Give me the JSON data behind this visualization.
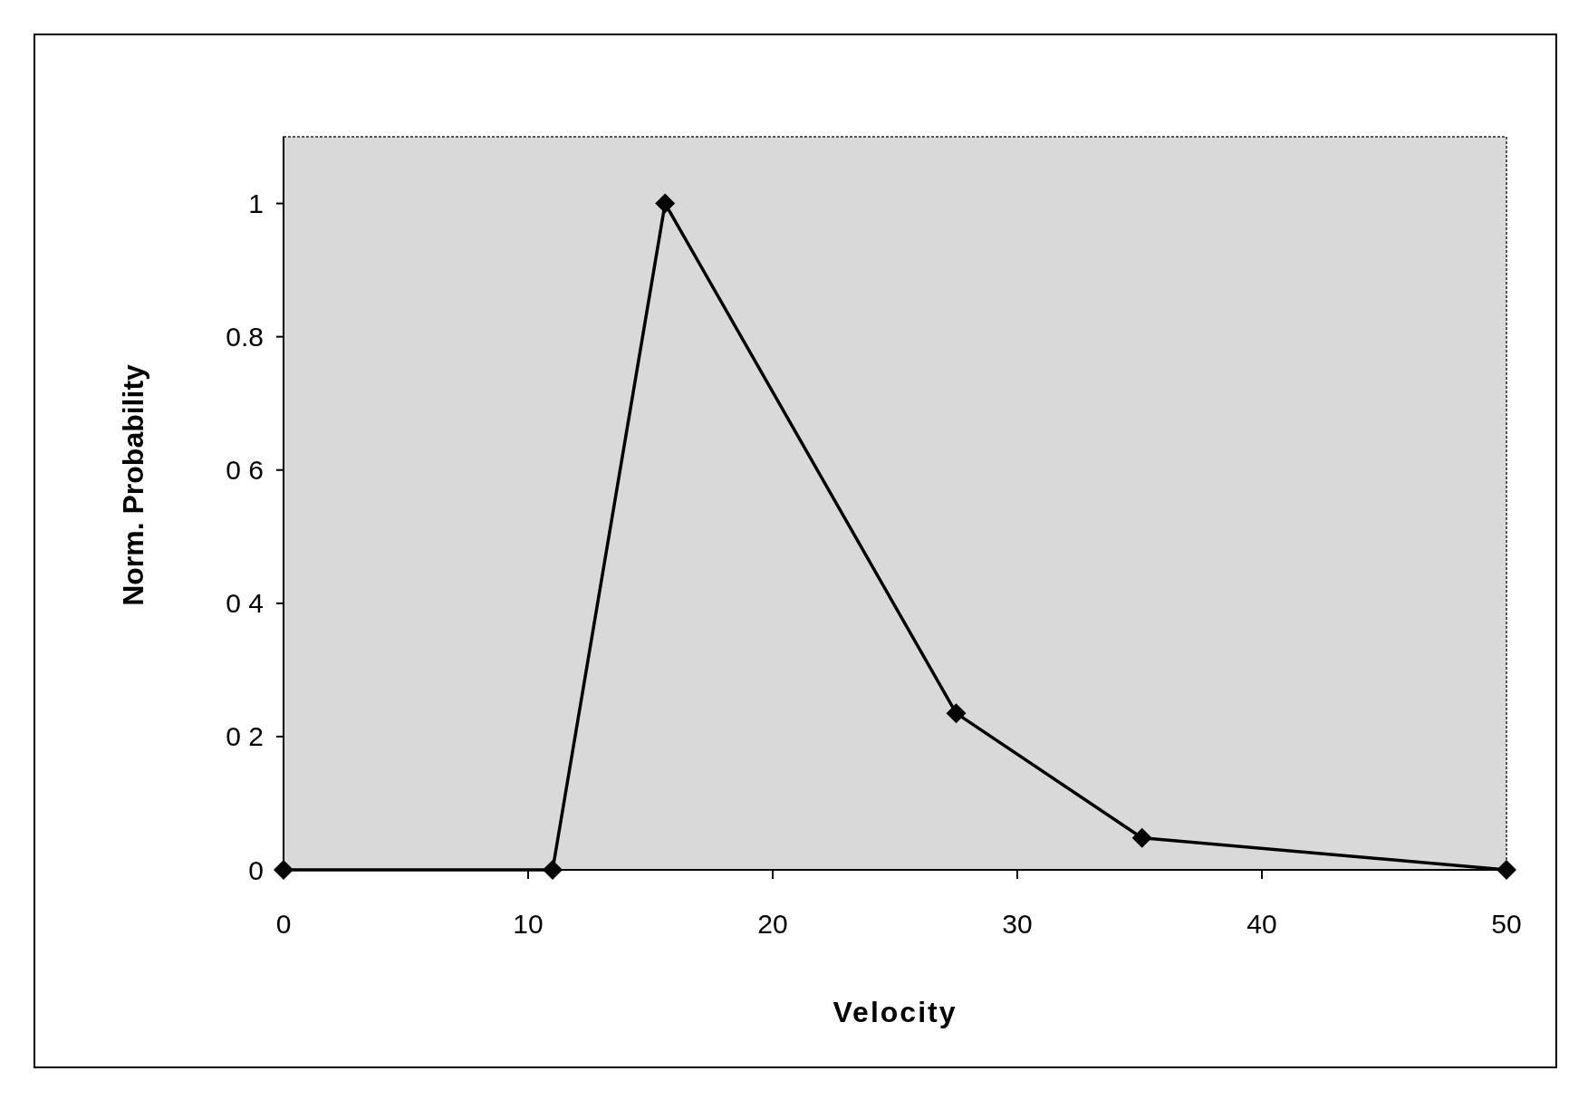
{
  "chart_data": {
    "type": "line",
    "xlabel": "Velocity",
    "ylabel": "Norm. Probability",
    "x": [
      0,
      11,
      15.6,
      27.5,
      35.1,
      50
    ],
    "series": [
      {
        "color": "#000000",
        "values": [
          0,
          0,
          1,
          0.235,
          0.048,
          0
        ]
      }
    ],
    "xlim": [
      0,
      50
    ],
    "xticks": [
      0,
      10,
      20,
      30,
      40,
      50
    ],
    "ylim": [
      0,
      1.1
    ],
    "yticks": [
      0,
      {
        "value": 0.2,
        "label": "0 2"
      },
      {
        "value": 0.4,
        "label": "0 4"
      },
      {
        "value": 0.6,
        "label": "0 6"
      },
      0.8,
      1
    ],
    "marker": "diamond",
    "line_style": "solid",
    "grid": false
  }
}
